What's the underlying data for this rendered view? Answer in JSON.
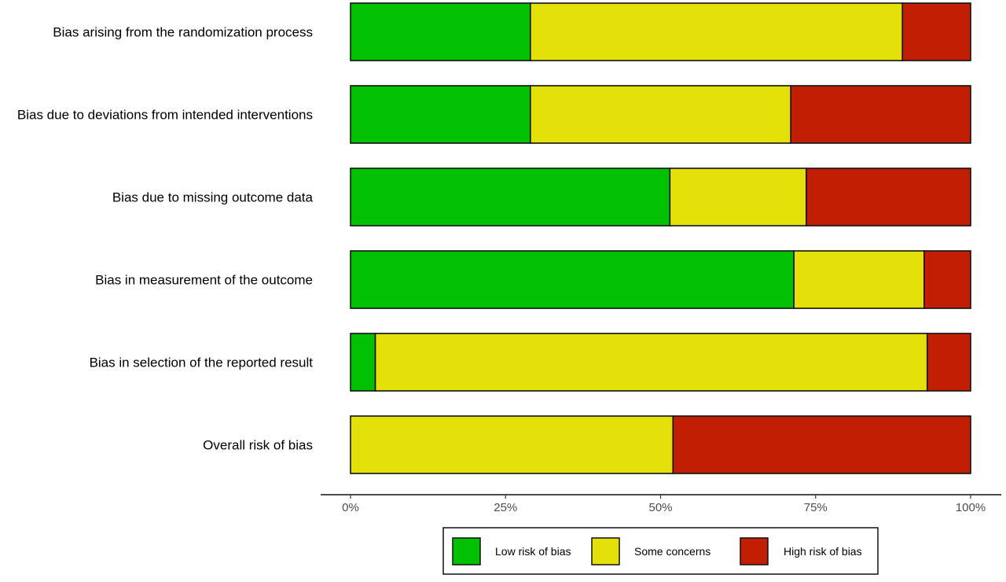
{
  "chart_data": {
    "type": "bar",
    "stacked": true,
    "orientation": "horizontal",
    "title": "",
    "xlabel": "",
    "ylabel": "",
    "xlim": [
      0,
      100
    ],
    "x_ticks": [
      0,
      25,
      50,
      75,
      100
    ],
    "x_tick_labels": [
      "0%",
      "25%",
      "50%",
      "75%",
      "100%"
    ],
    "grid": false,
    "legend_position": "bottom",
    "categories": [
      "Bias arising from the randomization process",
      "Bias due to deviations from intended interventions",
      "Bias due to missing outcome data",
      "Bias in measurement of the outcome",
      "Bias in selection of the reported result",
      "Overall risk of bias"
    ],
    "series": [
      {
        "name": "Low risk of bias",
        "color": "#02c102",
        "values": [
          29,
          29,
          51.5,
          71.5,
          4,
          0
        ]
      },
      {
        "name": "Some concerns",
        "color": "#e3e00a",
        "values": [
          60,
          42,
          22,
          21,
          89,
          52
        ]
      },
      {
        "name": "High risk of bias",
        "color": "#c21e04",
        "values": [
          11,
          29,
          26.5,
          7.5,
          7,
          48
        ]
      }
    ]
  }
}
